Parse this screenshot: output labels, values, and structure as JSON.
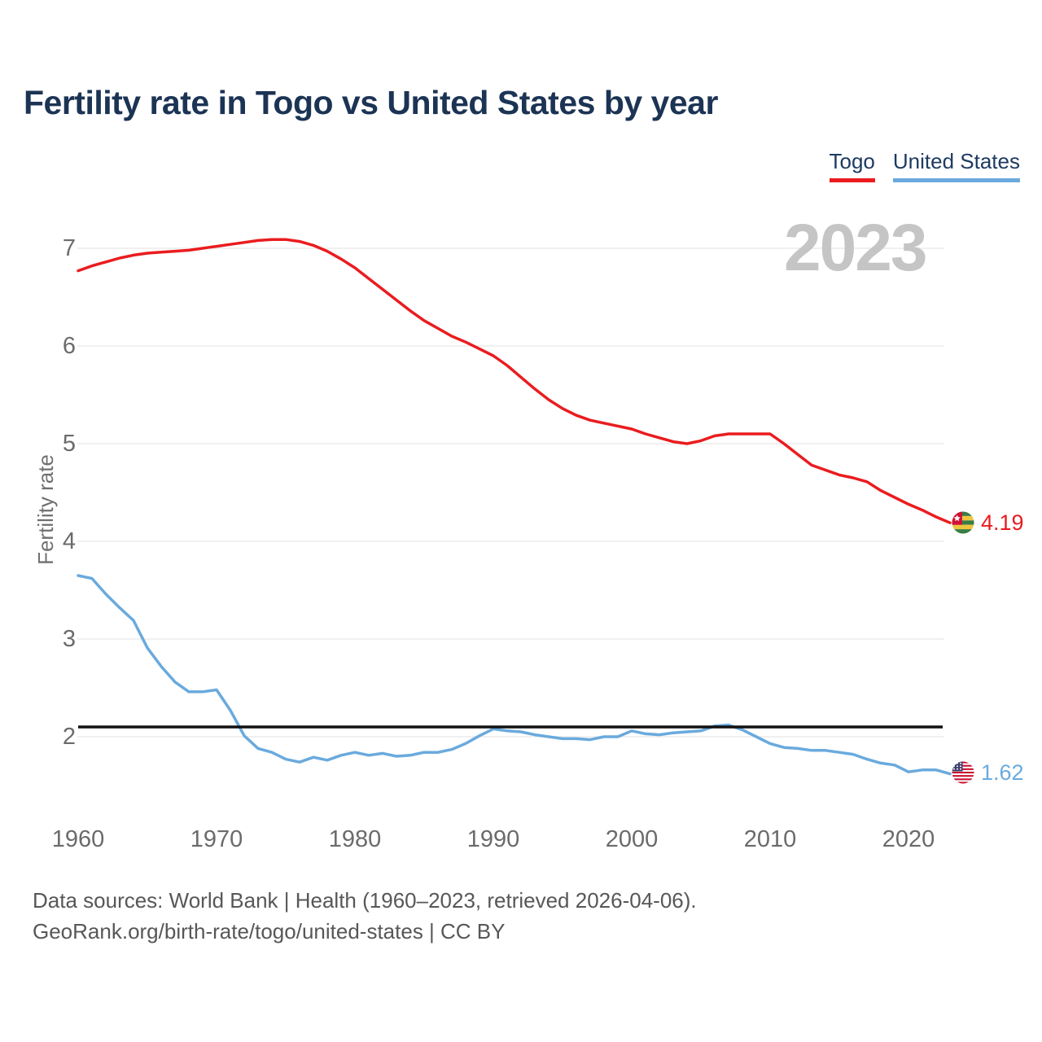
{
  "title": "Fertility rate in Togo vs United States by year",
  "legend": {
    "items": [
      {
        "label": "Togo",
        "color": "#ea1c1f"
      },
      {
        "label": "United States",
        "color": "#6aaadd"
      }
    ]
  },
  "watermark": "2023",
  "y_axis": {
    "label": "Fertility rate",
    "ticks": [
      7,
      6,
      5,
      4,
      3,
      2
    ]
  },
  "x_axis": {
    "ticks": [
      1960,
      1970,
      1980,
      1990,
      2000,
      2010,
      2020
    ]
  },
  "reference_line": {
    "value": 2.1,
    "color": "#111111"
  },
  "end_labels": [
    {
      "value": "4.19",
      "color": "#ea1c1f",
      "flag": "togo-flag"
    },
    {
      "value": "1.62",
      "color": "#6aaadd",
      "flag": "us-flag"
    }
  ],
  "footer": {
    "line1": "Data sources: World Bank | Health (1960–2023, retrieved 2026-04-06).",
    "line2": "GeoRank.org/birth-rate/togo/united-states | CC BY"
  },
  "chart_data": {
    "type": "line",
    "title": "Fertility rate in Togo vs United States by year",
    "xlabel": "",
    "ylabel": "Fertility rate",
    "ylim": [
      1.3,
      7.35
    ],
    "grid": "horizontal",
    "legend_position": "top-right",
    "reference_line": 2.1,
    "x": [
      1960,
      1961,
      1962,
      1963,
      1964,
      1965,
      1966,
      1967,
      1968,
      1969,
      1970,
      1971,
      1972,
      1973,
      1974,
      1975,
      1976,
      1977,
      1978,
      1979,
      1980,
      1981,
      1982,
      1983,
      1984,
      1985,
      1986,
      1987,
      1988,
      1989,
      1990,
      1991,
      1992,
      1993,
      1994,
      1995,
      1996,
      1997,
      1998,
      1999,
      2000,
      2001,
      2002,
      2003,
      2004,
      2005,
      2006,
      2007,
      2008,
      2009,
      2010,
      2011,
      2012,
      2013,
      2014,
      2015,
      2016,
      2017,
      2018,
      2019,
      2020,
      2021,
      2022,
      2023
    ],
    "series": [
      {
        "name": "Togo",
        "color": "#ea1c1f",
        "final_value": 4.19,
        "values": [
          6.77,
          6.82,
          6.86,
          6.9,
          6.93,
          6.95,
          6.96,
          6.97,
          6.98,
          7.0,
          7.02,
          7.04,
          7.06,
          7.08,
          7.09,
          7.09,
          7.07,
          7.03,
          6.97,
          6.89,
          6.8,
          6.69,
          6.58,
          6.47,
          6.36,
          6.26,
          6.18,
          6.1,
          6.04,
          5.97,
          5.9,
          5.8,
          5.68,
          5.56,
          5.45,
          5.36,
          5.29,
          5.24,
          5.21,
          5.18,
          5.15,
          5.1,
          5.06,
          5.02,
          5.0,
          5.03,
          5.08,
          5.1,
          5.1,
          5.1,
          5.1,
          5.0,
          4.89,
          4.78,
          4.73,
          4.68,
          4.65,
          4.61,
          4.52,
          4.45,
          4.38,
          4.32,
          4.25,
          4.19
        ]
      },
      {
        "name": "United States",
        "color": "#6aaadd",
        "final_value": 1.62,
        "values": [
          3.65,
          3.62,
          3.46,
          3.32,
          3.19,
          2.91,
          2.72,
          2.56,
          2.46,
          2.46,
          2.48,
          2.27,
          2.01,
          1.88,
          1.84,
          1.77,
          1.74,
          1.79,
          1.76,
          1.81,
          1.84,
          1.81,
          1.83,
          1.8,
          1.81,
          1.84,
          1.84,
          1.87,
          1.93,
          2.01,
          2.08,
          2.06,
          2.05,
          2.02,
          2.0,
          1.98,
          1.98,
          1.97,
          2.0,
          2.0,
          2.06,
          2.03,
          2.02,
          2.04,
          2.05,
          2.06,
          2.11,
          2.12,
          2.07,
          2.0,
          1.93,
          1.89,
          1.88,
          1.86,
          1.86,
          1.84,
          1.82,
          1.77,
          1.73,
          1.71,
          1.64,
          1.66,
          1.66,
          1.62
        ]
      }
    ]
  }
}
